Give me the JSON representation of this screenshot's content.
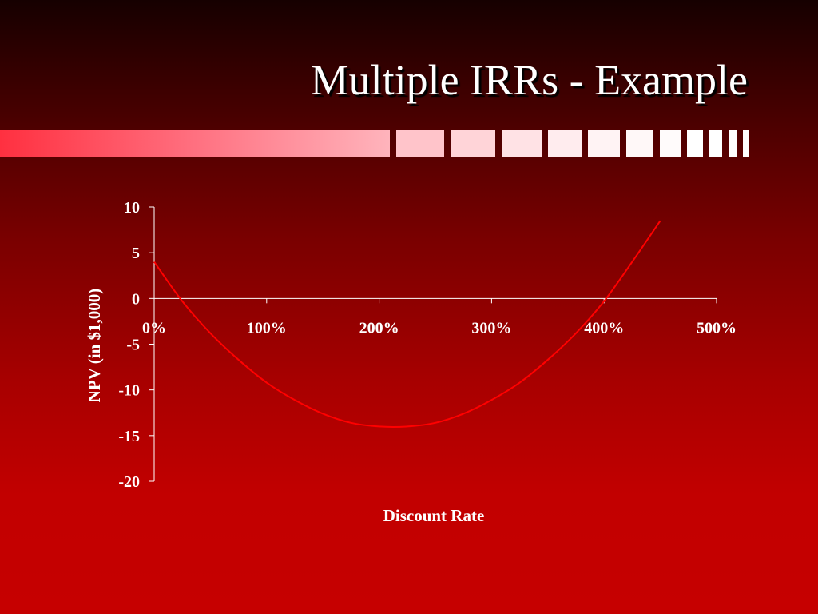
{
  "slide": {
    "title": "Multiple IRRs - Example"
  },
  "colors": {
    "curve": "#ff0000",
    "axis": "#ffffff",
    "text": "#ffffff"
  },
  "chart_data": {
    "type": "line",
    "xlabel": "Discount Rate",
    "ylabel": "NPV (in $1,000)",
    "xlim": [
      0,
      500
    ],
    "ylim": [
      -20,
      10
    ],
    "x_ticks": [
      0,
      100,
      200,
      300,
      400,
      500
    ],
    "x_tick_labels": [
      "0%",
      "100%",
      "200%",
      "300%",
      "400%",
      "500%"
    ],
    "y_ticks": [
      10,
      5,
      0,
      -5,
      -10,
      -15,
      -20
    ],
    "y_tick_labels": [
      "10",
      "5",
      "0",
      "-5",
      "-10",
      "-15",
      "-20"
    ],
    "grid": false,
    "legend": "none",
    "series": [
      {
        "x": [
          0,
          25,
          50,
          75,
          100,
          125,
          150,
          175,
          200,
          225,
          250,
          275,
          300,
          325,
          350,
          375,
          400,
          425,
          450
        ],
        "values": [
          4.0,
          -0.3,
          -3.8,
          -6.7,
          -9.2,
          -11.1,
          -12.6,
          -13.6,
          -14.0,
          -14.0,
          -13.6,
          -12.6,
          -11.1,
          -9.2,
          -6.7,
          -3.8,
          -0.3,
          4.0,
          8.5
        ]
      }
    ]
  }
}
